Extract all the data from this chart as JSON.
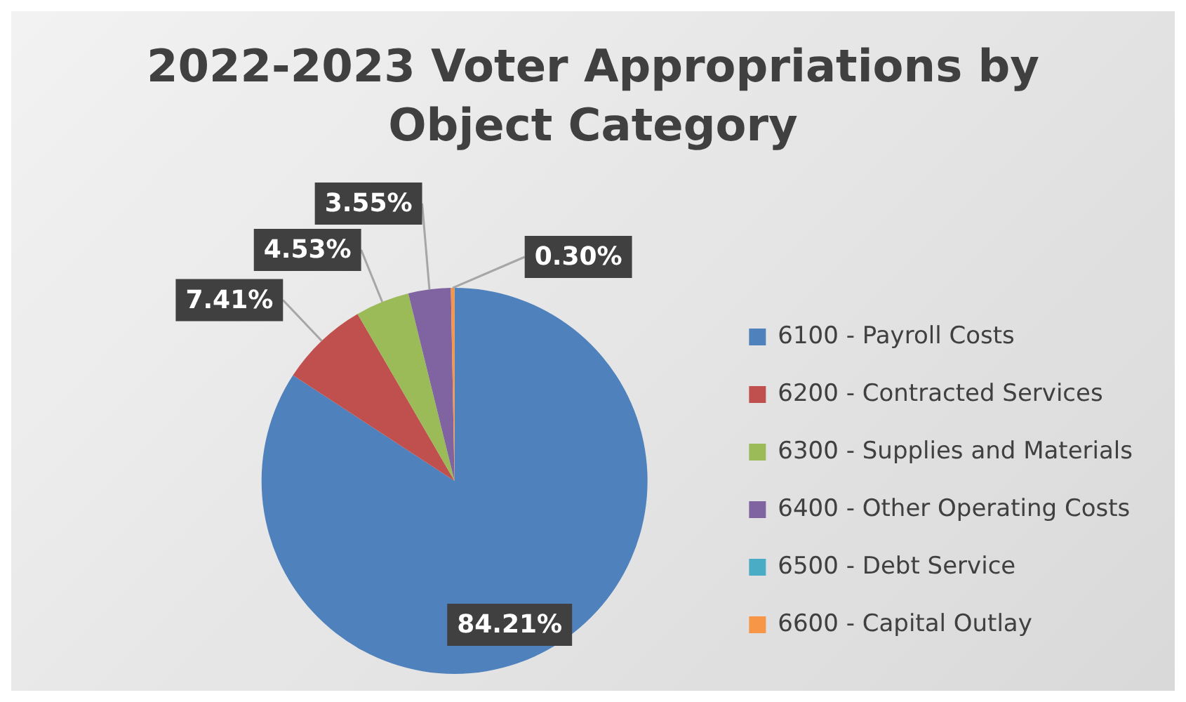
{
  "chart_data": {
    "type": "pie",
    "title": "2022-2023 Voter Appropriations by Object Category",
    "categories": [
      "6100 - Payroll Costs",
      "6200 - Contracted Services",
      "6300 - Supplies and Materials",
      "6400 - Other Operating Costs",
      "6500 - Debt Service",
      "6600 - Capital Outlay"
    ],
    "values": [
      84.21,
      7.41,
      4.53,
      3.55,
      0,
      0.3
    ],
    "colors": [
      "#4f81bd",
      "#c0504d",
      "#9bbb59",
      "#8064a2",
      "#4bacc6",
      "#f79646"
    ],
    "value_labels": [
      "84.21%",
      "7.41%",
      "4.53%",
      "3.55%",
      null,
      "0.30%"
    ],
    "legend": "right"
  }
}
